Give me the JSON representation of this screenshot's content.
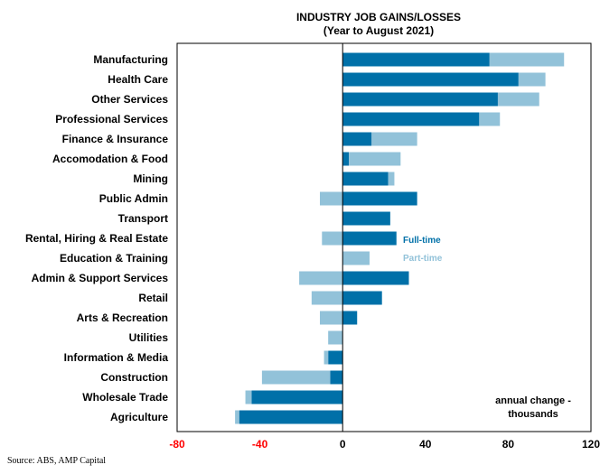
{
  "chart_data": {
    "type": "bar",
    "orientation": "horizontal",
    "stacked": true,
    "title": "INDUSTRY JOB GAINS/LOSSES",
    "subtitle": "(Year to August 2021)",
    "categories": [
      "Manufacturing",
      "Health Care",
      "Other Services",
      "Professional Services",
      "Finance & Insurance",
      "Accomodation & Food",
      "Mining",
      "Public Admin",
      "Transport",
      "Rental, Hiring & Real Estate",
      "Education & Training",
      "Admin & Support Services",
      "Retail",
      "Arts & Recreation",
      "Utilities",
      "Information & Media",
      "Construction",
      "Wholesale Trade",
      "Agriculture"
    ],
    "series": [
      {
        "name": "Full-time",
        "color": "#0070a8",
        "values": [
          71,
          85,
          75,
          66,
          14,
          3,
          22,
          36,
          23,
          26,
          0,
          32,
          19,
          7,
          0,
          -7,
          -6,
          -44,
          -50
        ]
      },
      {
        "name": "Part-time",
        "color": "#92c2d9",
        "values": [
          36,
          13,
          20,
          10,
          22,
          25,
          3,
          -11,
          0,
          -10,
          13,
          -21,
          -15,
          -11,
          -7,
          -2,
          -33,
          -3,
          -2
        ]
      }
    ],
    "xlim": [
      -80,
      120
    ],
    "xticks": [
      "-80",
      "-40",
      "0",
      "40",
      "80",
      "120"
    ],
    "xtick_colors": [
      "#ff0000",
      "#ff0000",
      "#000000",
      "#000000",
      "#000000",
      "#000000"
    ],
    "annotation": [
      "annual change -",
      "thousands"
    ],
    "grid": false
  },
  "source": "Source: ABS, AMP Capital"
}
